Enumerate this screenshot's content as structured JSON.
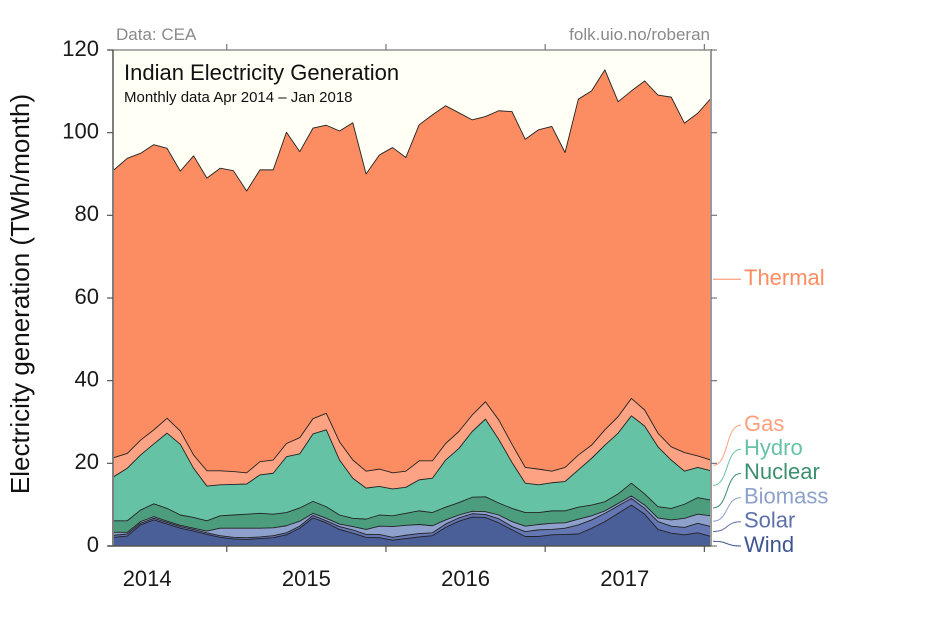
{
  "header": {
    "source": "Data: CEA",
    "credit": "folk.uio.no/roberan"
  },
  "chart_data": {
    "type": "area",
    "stacked": true,
    "title": "Indian Electricity Generation",
    "subtitle": "Monthly data Apr 2014 – Jan 2018",
    "xlabel": "",
    "ylabel": "Electricity generation (TWh/month)",
    "ylim": [
      0,
      120
    ],
    "yticks": [
      0,
      20,
      40,
      60,
      80,
      100,
      120
    ],
    "xlim": [
      "2014-04",
      "2018-01"
    ],
    "xtick_labels": [
      "2014",
      "2015",
      "2016",
      "2017"
    ],
    "grid": false,
    "legend": "right, direct labels with leader lines",
    "background_color": "#fffff5",
    "x": [
      "2014-04",
      "2014-05",
      "2014-06",
      "2014-07",
      "2014-08",
      "2014-09",
      "2014-10",
      "2014-11",
      "2014-12",
      "2015-01",
      "2015-02",
      "2015-03",
      "2015-04",
      "2015-05",
      "2015-06",
      "2015-07",
      "2015-08",
      "2015-09",
      "2015-10",
      "2015-11",
      "2015-12",
      "2016-01",
      "2016-02",
      "2016-03",
      "2016-04",
      "2016-05",
      "2016-06",
      "2016-07",
      "2016-08",
      "2016-09",
      "2016-10",
      "2016-11",
      "2016-12",
      "2017-01",
      "2017-02",
      "2017-03",
      "2017-04",
      "2017-05",
      "2017-06",
      "2017-07",
      "2017-08",
      "2017-09",
      "2017-10",
      "2017-11",
      "2017-12",
      "2018-01"
    ],
    "series": [
      {
        "name": "Wind",
        "color": "#4a5e98",
        "label_color": "#3f5592",
        "values": [
          2.1,
          2.4,
          5.1,
          6.3,
          5.3,
          4.3,
          3.6,
          2.8,
          2.1,
          1.7,
          1.6,
          1.8,
          2.0,
          2.7,
          4.3,
          6.8,
          5.6,
          4.0,
          3.1,
          2.1,
          2.0,
          1.4,
          1.8,
          2.2,
          2.5,
          4.5,
          6.0,
          7.0,
          6.9,
          5.6,
          3.9,
          2.3,
          2.3,
          2.7,
          2.8,
          2.9,
          4.3,
          5.9,
          7.9,
          9.9,
          7.7,
          4.0,
          3.1,
          2.7,
          3.2,
          2.3
        ]
      },
      {
        "name": "Solar",
        "color": "#6477b3",
        "label_color": "#5c70aa",
        "values": [
          0.5,
          0.5,
          0.4,
          0.4,
          0.4,
          0.4,
          0.4,
          0.4,
          0.4,
          0.4,
          0.4,
          0.4,
          0.5,
          0.5,
          0.5,
          0.6,
          0.5,
          0.7,
          0.8,
          0.7,
          0.8,
          0.7,
          0.8,
          0.8,
          0.7,
          0.8,
          0.8,
          0.8,
          0.7,
          1.0,
          0.8,
          1.2,
          1.6,
          1.3,
          1.5,
          2.2,
          2.0,
          2.0,
          1.8,
          1.6,
          1.4,
          1.9,
          1.7,
          1.8,
          2.3,
          2.4
        ]
      },
      {
        "name": "Biomass",
        "color": "#8ea1cc",
        "label_color": "#8da0cb",
        "values": [
          0.7,
          0.4,
          0.4,
          0.4,
          0.3,
          0.3,
          0.3,
          0.4,
          1.8,
          2.2,
          2.3,
          2.1,
          1.9,
          1.7,
          1.2,
          0.5,
          0.6,
          0.6,
          0.8,
          1.2,
          2.0,
          2.6,
          2.4,
          2.2,
          1.7,
          1.0,
          0.7,
          0.6,
          0.7,
          0.9,
          1.2,
          1.3,
          1.3,
          1.5,
          1.3,
          1.4,
          1.0,
          0.6,
          0.6,
          0.6,
          0.8,
          0.9,
          1.5,
          2.2,
          2.2,
          2.6
        ]
      },
      {
        "name": "Nuclear",
        "color": "#4c9c7e",
        "label_color": "#3d8f6f",
        "values": [
          2.8,
          2.8,
          2.8,
          3.1,
          3.1,
          2.5,
          2.6,
          2.5,
          3.0,
          3.2,
          3.4,
          3.6,
          3.3,
          3.2,
          3.2,
          2.9,
          2.8,
          2.2,
          2.0,
          2.5,
          2.7,
          2.6,
          2.9,
          3.3,
          3.2,
          3.1,
          3.0,
          3.4,
          3.6,
          2.9,
          3.2,
          3.3,
          2.9,
          3.0,
          2.9,
          2.9,
          2.6,
          2.2,
          2.3,
          3.1,
          2.7,
          2.7,
          2.8,
          3.4,
          4.0,
          3.8
        ]
      },
      {
        "name": "Hydro",
        "color": "#66c2a5",
        "label_color": "#66c2a5",
        "values": [
          10.7,
          12.7,
          13.3,
          14.5,
          18.2,
          17.1,
          11.9,
          8.4,
          7.5,
          7.4,
          7.3,
          9.3,
          9.9,
          13.5,
          13.1,
          16.3,
          18.6,
          13.3,
          9.7,
          7.5,
          6.9,
          6.5,
          6.3,
          7.5,
          8.3,
          11.4,
          13.1,
          15.9,
          18.8,
          15.4,
          11.1,
          7.1,
          6.7,
          6.8,
          7.1,
          9.0,
          11.3,
          13.7,
          14.7,
          16.3,
          16.4,
          14.5,
          11.7,
          8.0,
          7.3,
          7.1
        ]
      },
      {
        "name": "Gas",
        "color": "#fda383",
        "label_color": "#fc9f7e",
        "values": [
          4.6,
          3.6,
          3.6,
          3.4,
          3.6,
          3.2,
          3.2,
          3.7,
          3.4,
          3.1,
          2.7,
          3.2,
          3.2,
          3.2,
          3.9,
          3.7,
          4.0,
          4.4,
          4.4,
          4.1,
          4.2,
          3.9,
          3.9,
          4.6,
          4.2,
          4.0,
          4.1,
          4.0,
          4.2,
          4.7,
          4.4,
          3.8,
          3.8,
          2.8,
          3.4,
          3.6,
          3.2,
          3.7,
          4.0,
          4.2,
          3.9,
          3.3,
          3.2,
          4.5,
          2.8,
          2.6
        ]
      },
      {
        "name": "Thermal",
        "color": "#fc8d62",
        "label_color": "#fc8d62",
        "values": [
          69.6,
          71.4,
          69.4,
          69.0,
          65.3,
          62.9,
          72.4,
          70.8,
          73.2,
          72.8,
          68.2,
          70.6,
          70.2,
          75.3,
          69.2,
          70.3,
          69.7,
          75.2,
          81.6,
          71.9,
          76.0,
          78.7,
          75.9,
          81.3,
          83.7,
          81.7,
          77.1,
          71.4,
          69.0,
          74.8,
          80.5,
          79.4,
          82.1,
          83.4,
          76.2,
          86.1,
          85.7,
          87.1,
          76.2,
          74.4,
          79.6,
          81.8,
          84.6,
          79.7,
          82.9,
          87.5
        ]
      }
    ]
  }
}
